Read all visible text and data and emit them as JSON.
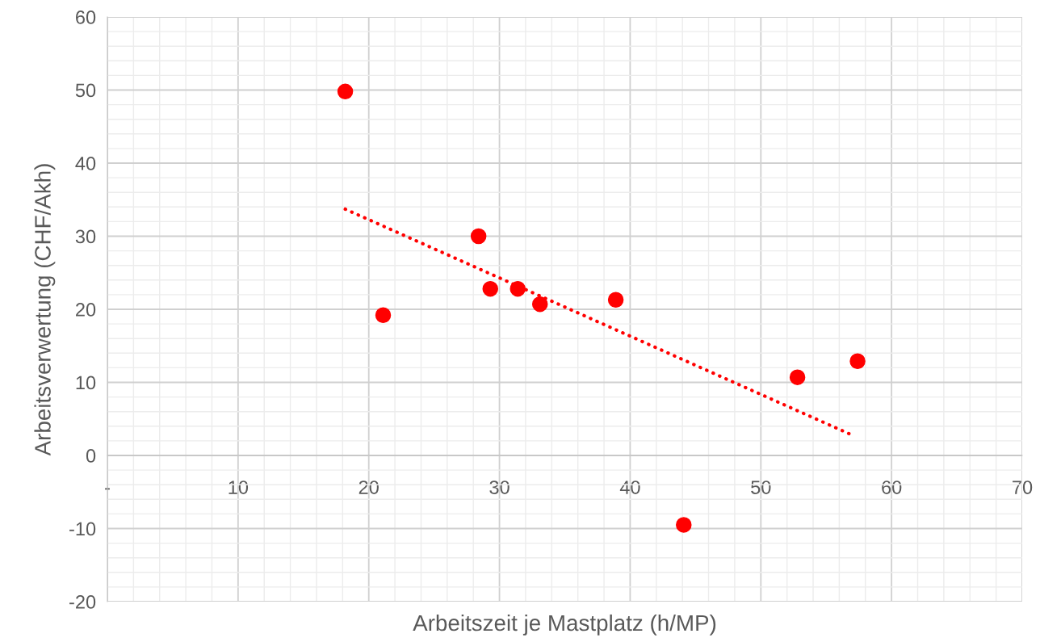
{
  "chart_data": {
    "type": "scatter",
    "xlabel": "Arbeitszeit je Mastplatz (h/MP)",
    "ylabel": "Arbeitsverwertung (CHF/Akh)",
    "x": [
      18.2,
      21.1,
      28.4,
      29.3,
      31.4,
      33.1,
      38.9,
      44.1,
      52.8,
      57.4
    ],
    "series": [
      {
        "color": "#ff0000",
        "marker": "circle",
        "values": [
          49.8,
          19.2,
          30.0,
          22.8,
          22.8,
          20.7,
          21.3,
          -9.5,
          10.7,
          12.9
        ]
      },
      {
        "type": "line",
        "color": "#ff0000",
        "line_style": "dotted",
        "marker": "none",
        "x": [
          18.2,
          57.1
        ],
        "values": [
          33.7,
          2.7
        ]
      }
    ],
    "xlim": [
      0,
      70
    ],
    "xticks": [
      {
        "value": 0,
        "label": "-"
      },
      10,
      20,
      30,
      40,
      50,
      60,
      70
    ],
    "ylim": [
      -20,
      60
    ],
    "yticks": [
      -20,
      -10,
      0,
      10,
      20,
      30,
      40,
      50,
      60
    ],
    "grid": true
  }
}
